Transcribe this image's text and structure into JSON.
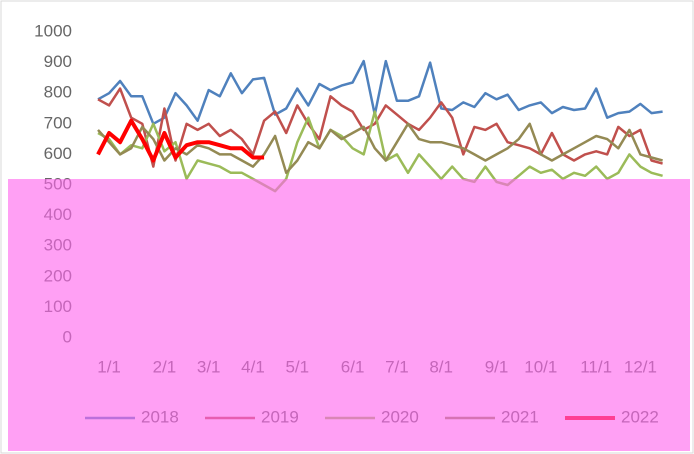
{
  "chart_data": {
    "type": "line",
    "categories": [
      null,
      "1/1",
      null,
      null,
      null,
      null,
      "2/1",
      null,
      null,
      null,
      "3/1",
      null,
      null,
      null,
      "4/1",
      null,
      null,
      null,
      "5/1",
      null,
      null,
      null,
      null,
      "6/1",
      null,
      null,
      null,
      "7/1",
      null,
      null,
      null,
      "8/1",
      null,
      null,
      null,
      null,
      "9/1",
      null,
      null,
      null,
      "10/1",
      null,
      null,
      null,
      null,
      "11/1",
      null,
      null,
      null,
      "12/1",
      null,
      null
    ],
    "series": [
      {
        "name": "2018",
        "color": "#4f81bd",
        "values": [
          780,
          800,
          840,
          790,
          790,
          700,
          720,
          800,
          760,
          710,
          810,
          790,
          865,
          800,
          845,
          850,
          730,
          750,
          815,
          760,
          830,
          810,
          825,
          835,
          905,
          730,
          905,
          775,
          775,
          790,
          900,
          750,
          745,
          770,
          755,
          800,
          780,
          795,
          745,
          760,
          770,
          735,
          755,
          745,
          750,
          815,
          720,
          735,
          740,
          765,
          735,
          740
        ]
      },
      {
        "name": "2019",
        "color": "#c0504d",
        "values": [
          780,
          760,
          815,
          720,
          700,
          560,
          750,
          580,
          700,
          680,
          700,
          660,
          680,
          650,
          600,
          710,
          740,
          670,
          760,
          700,
          650,
          790,
          760,
          740,
          680,
          700,
          760,
          730,
          700,
          680,
          720,
          770,
          720,
          600,
          690,
          680,
          700,
          640,
          630,
          620,
          600,
          670,
          600,
          580,
          600,
          610,
          600,
          690,
          660,
          680,
          580,
          570
        ]
      },
      {
        "name": "2020",
        "color": "#9bbb59",
        "values": [
          670,
          650,
          600,
          630,
          620,
          700,
          610,
          640,
          520,
          580,
          570,
          560,
          540,
          540,
          520,
          500,
          480,
          520,
          640,
          720,
          620,
          680,
          660,
          620,
          600,
          740,
          580,
          600,
          540,
          600,
          560,
          520,
          560,
          520,
          510,
          560,
          510,
          500,
          530,
          560,
          540,
          550,
          520,
          540,
          530,
          560,
          520,
          540,
          600,
          560,
          540,
          530
        ]
      },
      {
        "name": "2021",
        "color": "#948a54",
        "values": [
          680,
          640,
          600,
          620,
          690,
          650,
          580,
          620,
          600,
          630,
          620,
          600,
          600,
          580,
          560,
          600,
          660,
          540,
          580,
          640,
          620,
          680,
          650,
          670,
          690,
          620,
          580,
          640,
          700,
          650,
          640,
          640,
          630,
          620,
          600,
          580,
          600,
          620,
          650,
          700,
          600,
          580,
          600,
          620,
          640,
          660,
          650,
          620,
          680,
          600,
          590,
          580
        ]
      },
      {
        "name": "2022",
        "color": "#ff0000",
        "values": [
          600,
          670,
          640,
          710,
          650,
          580,
          670,
          590,
          630,
          640,
          640,
          630,
          620,
          620,
          590,
          590,
          null,
          null,
          null,
          null,
          null,
          null,
          null,
          null,
          null,
          null,
          null,
          null,
          null,
          null,
          null,
          null,
          null,
          null,
          null,
          null,
          null,
          null,
          null,
          null,
          null,
          null,
          null,
          null,
          null,
          null,
          null,
          null,
          null,
          null,
          null,
          null
        ]
      }
    ],
    "ylim": [
      0,
      1000
    ],
    "yticks": [
      0,
      100,
      200,
      300,
      400,
      500,
      600,
      700,
      800,
      900,
      1000
    ],
    "grid": false
  }
}
